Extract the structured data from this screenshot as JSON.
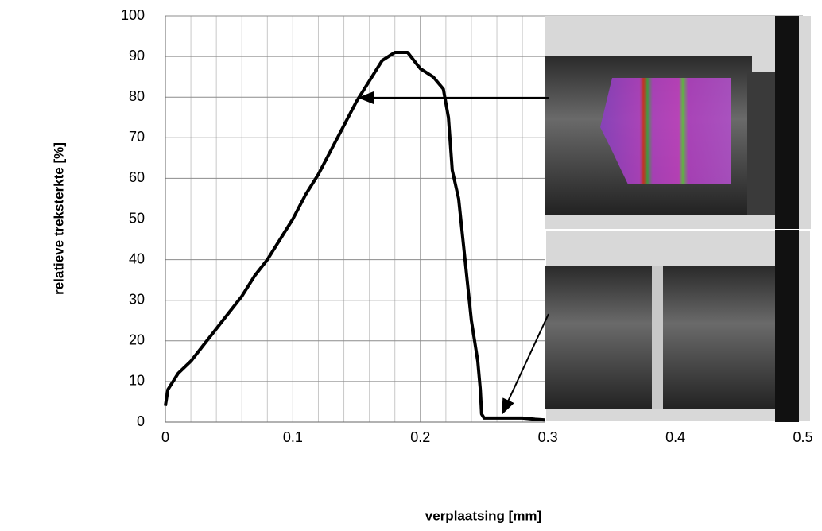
{
  "chart_data": {
    "type": "line",
    "x_label": "verplaatsing [mm]",
    "y_label": "relatieve treksterkte [%]",
    "xlim": [
      0,
      0.5
    ],
    "ylim": [
      0,
      100
    ],
    "xticks": [
      0,
      0.1,
      0.2,
      0.3,
      0.4,
      0.5
    ],
    "yticks": [
      0,
      10,
      20,
      30,
      40,
      50,
      60,
      70,
      80,
      90,
      100
    ],
    "grid": true,
    "series": [
      {
        "color": "#000000",
        "x": [
          0,
          0.002,
          0.01,
          0.02,
          0.03,
          0.04,
          0.05,
          0.06,
          0.07,
          0.08,
          0.09,
          0.1,
          0.11,
          0.12,
          0.13,
          0.14,
          0.15,
          0.16,
          0.17,
          0.18,
          0.19,
          0.195,
          0.2,
          0.21,
          0.218,
          0.222,
          0.225,
          0.23,
          0.235,
          0.24,
          0.245,
          0.247,
          0.248,
          0.25,
          0.26,
          0.27,
          0.28,
          0.29,
          0.3
        ],
        "values": [
          4,
          8,
          12,
          15,
          19,
          23,
          27,
          31,
          36,
          40,
          45,
          50,
          56,
          61,
          67,
          73,
          79,
          84,
          89,
          91,
          91,
          89,
          87,
          85,
          82,
          75,
          62,
          55,
          40,
          25,
          15,
          8,
          2,
          1,
          1,
          1,
          1,
          0.7,
          0.5
        ]
      }
    ]
  }
}
